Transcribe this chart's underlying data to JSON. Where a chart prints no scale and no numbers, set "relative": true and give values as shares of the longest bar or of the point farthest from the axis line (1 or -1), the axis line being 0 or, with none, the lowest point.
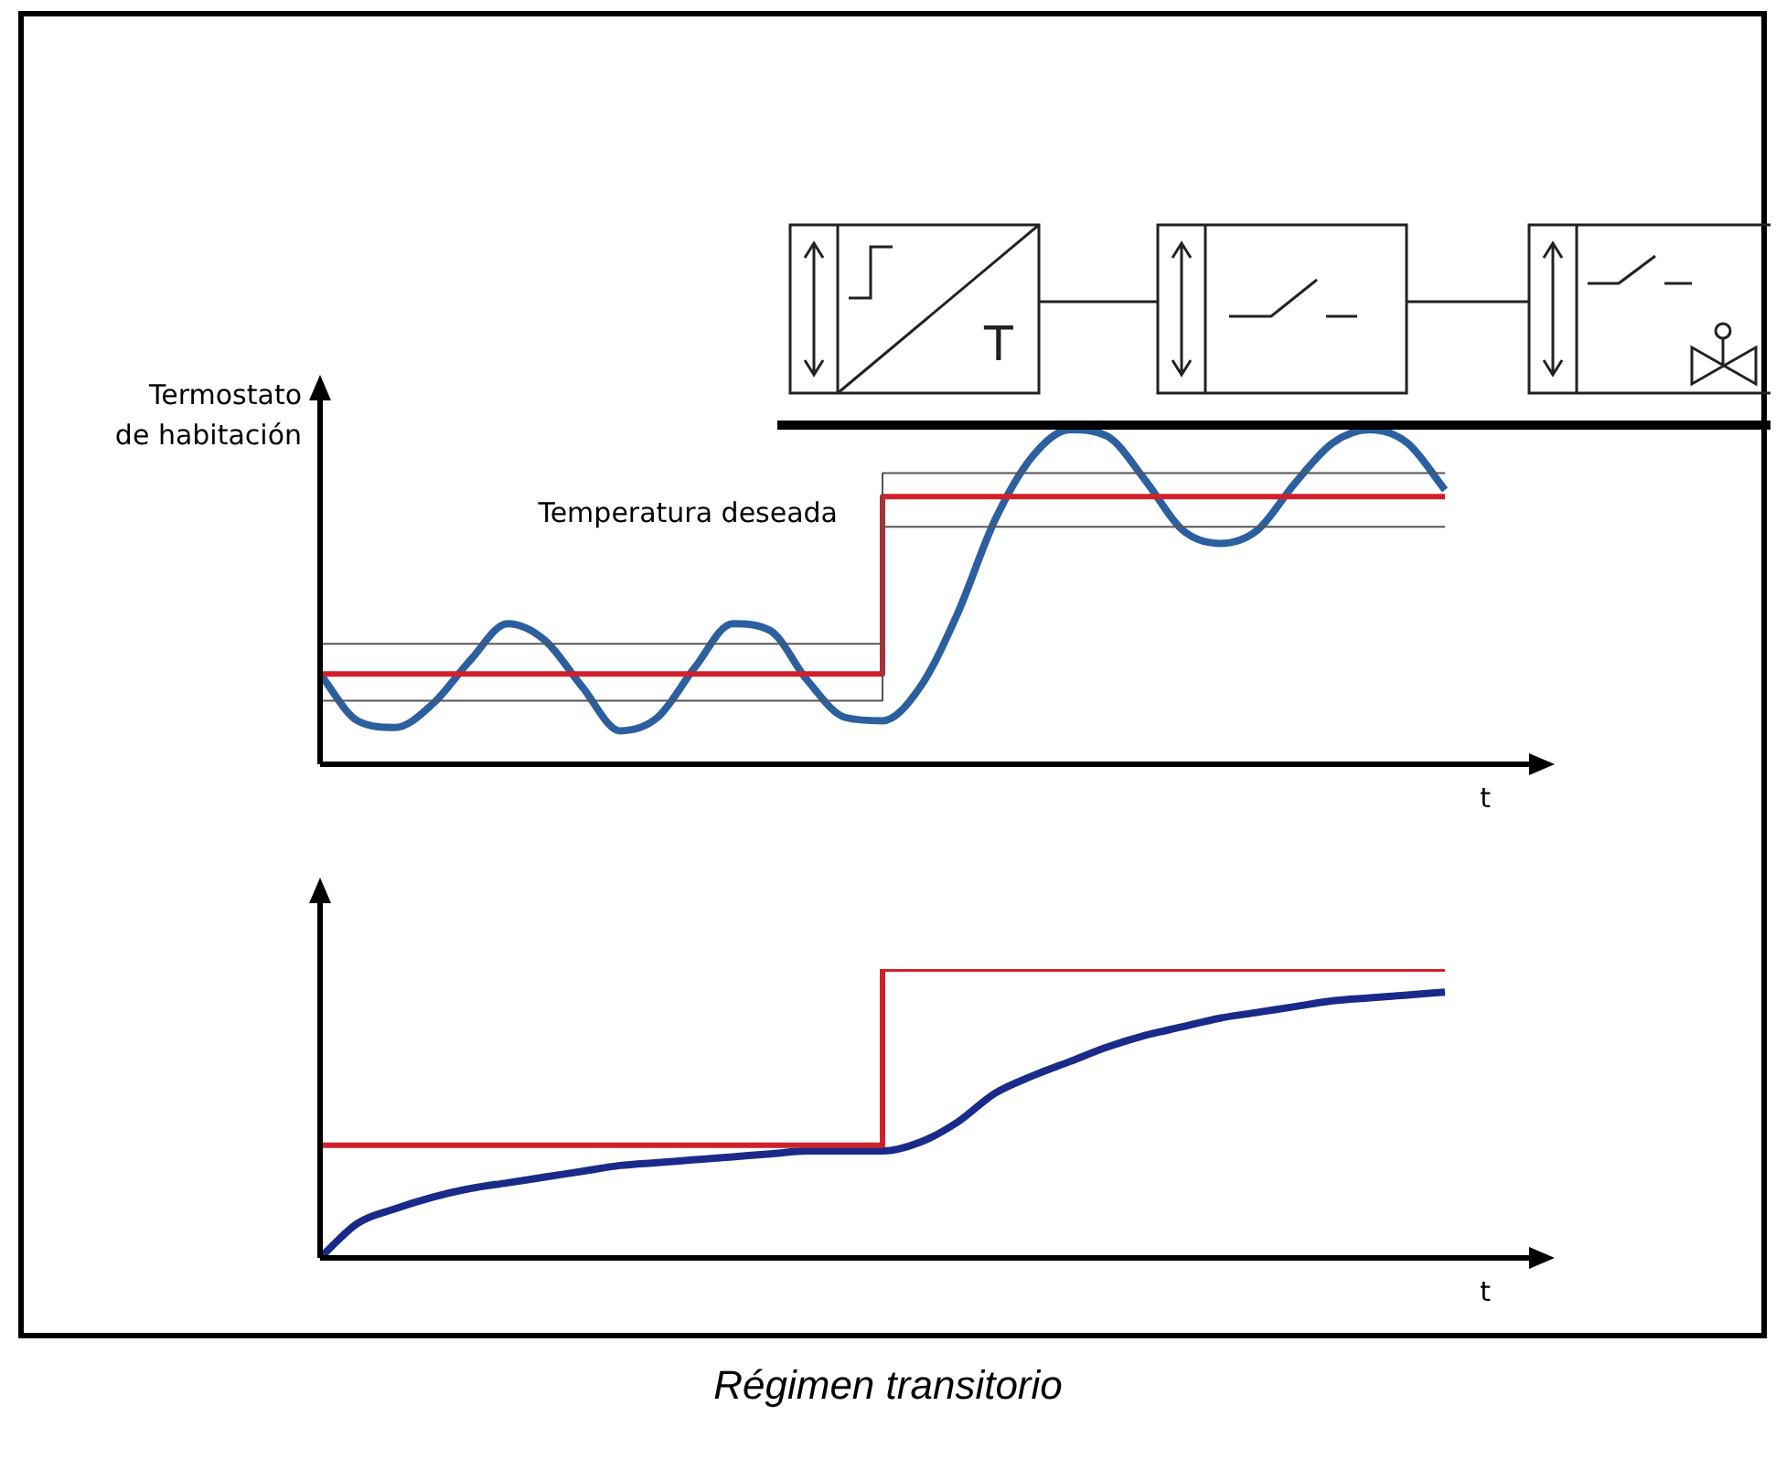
{
  "chart_data": [
    {
      "type": "line",
      "ylabel": "Termostato de habitación",
      "xlabel": "t",
      "relative": true,
      "grid": false,
      "legend": false,
      "marker": "none",
      "annotations": [
        "Temperatura deseada",
        "T"
      ],
      "categories": [
        null,
        null,
        null,
        null,
        null,
        null,
        null,
        null,
        null,
        null,
        null,
        null,
        null,
        null,
        null,
        null,
        null,
        null,
        null,
        null,
        null,
        null,
        null,
        null,
        null,
        null,
        null,
        null,
        null,
        null,
        null
      ],
      "series": [
        {
          "type": "step",
          "color": "#555555",
          "values": [
            0.36,
            0.36,
            0.36,
            0.36,
            0.36,
            0.36,
            0.36,
            0.36,
            0.36,
            0.36,
            0.36,
            0.36,
            0.36,
            0.36,
            0.36,
            0.87,
            0.87,
            0.87,
            0.87,
            0.87,
            0.87,
            0.87,
            0.87,
            0.87,
            0.87,
            0.87,
            0.87,
            0.87,
            0.87,
            0.87,
            0.87
          ]
        },
        {
          "type": "step",
          "color": "#555555",
          "values": [
            0.19,
            0.19,
            0.19,
            0.19,
            0.19,
            0.19,
            0.19,
            0.19,
            0.19,
            0.19,
            0.19,
            0.19,
            0.19,
            0.19,
            0.19,
            0.71,
            0.71,
            0.71,
            0.71,
            0.71,
            0.71,
            0.71,
            0.71,
            0.71,
            0.71,
            0.71,
            0.71,
            0.71,
            0.71,
            0.71,
            0.71
          ]
        },
        {
          "type": "step",
          "color": "#d0202a",
          "values": [
            0.27,
            0.27,
            0.27,
            0.27,
            0.27,
            0.27,
            0.27,
            0.27,
            0.27,
            0.27,
            0.27,
            0.27,
            0.27,
            0.27,
            0.27,
            0.8,
            0.8,
            0.8,
            0.8,
            0.8,
            0.8,
            0.8,
            0.8,
            0.8,
            0.8,
            0.8,
            0.8,
            0.8,
            0.8,
            0.8,
            0.8
          ]
        },
        {
          "type": "line",
          "color": "#2b5fa0",
          "values": [
            0.27,
            0.13,
            0.11,
            0.18,
            0.31,
            0.42,
            0.37,
            0.23,
            0.1,
            0.14,
            0.29,
            0.42,
            0.4,
            0.25,
            0.14,
            0.13,
            0.23,
            0.45,
            0.73,
            0.92,
            1,
            0.98,
            0.85,
            0.7,
            0.66,
            0.7,
            0.84,
            0.96,
            1,
            0.96,
            0.82
          ]
        }
      ]
    },
    {
      "type": "line",
      "xlabel": "t",
      "relative": true,
      "grid": false,
      "legend": false,
      "marker": "none",
      "annotations": [
        "Régimen transitorio"
      ],
      "categories": [
        null,
        null,
        null,
        null,
        null,
        null,
        null,
        null,
        null,
        null,
        null,
        null,
        null,
        null,
        null,
        null,
        null,
        null,
        null,
        null,
        null,
        null,
        null,
        null,
        null,
        null,
        null,
        null,
        null,
        null,
        null
      ],
      "series": [
        {
          "type": "step",
          "color": "#d0202a",
          "values": [
            0.39,
            0.39,
            0.39,
            0.39,
            0.39,
            0.39,
            0.39,
            0.39,
            0.39,
            0.39,
            0.39,
            0.39,
            0.39,
            0.39,
            0.39,
            1,
            1,
            1,
            1,
            1,
            1,
            1,
            1,
            1,
            1,
            1,
            1,
            1,
            1,
            1,
            1
          ]
        },
        {
          "type": "line",
          "color": "#1a2a8a",
          "values": [
            0,
            0.12,
            0.17,
            0.21,
            0.24,
            0.26,
            0.28,
            0.3,
            0.32,
            0.33,
            0.34,
            0.35,
            0.36,
            0.37,
            0.37,
            0.37,
            0.4,
            0.47,
            0.57,
            0.63,
            0.68,
            0.73,
            0.77,
            0.8,
            0.83,
            0.85,
            0.87,
            0.89,
            0.9,
            0.91,
            0.92
          ]
        }
      ]
    }
  ]
}
